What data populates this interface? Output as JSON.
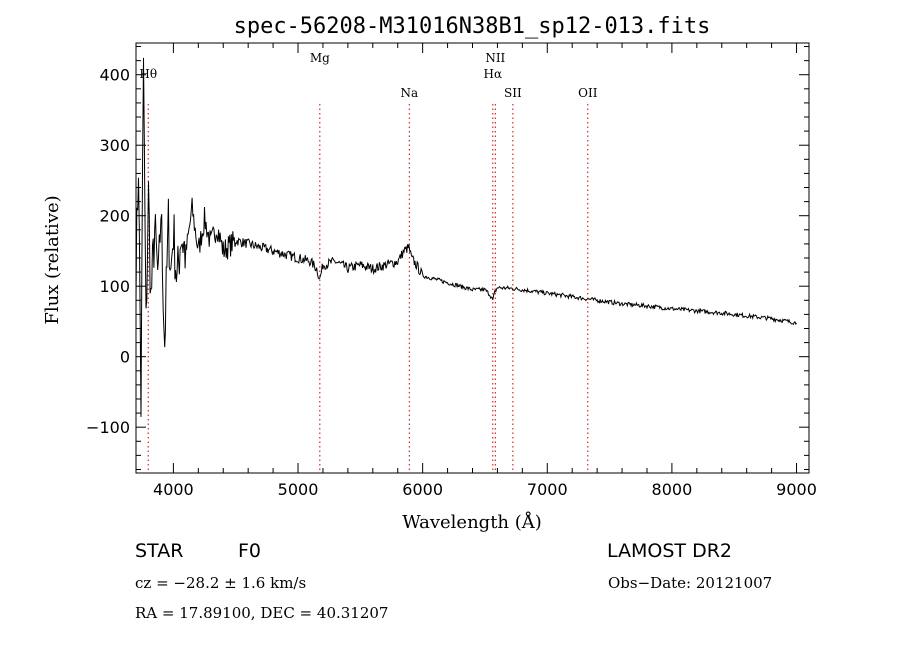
{
  "chart_data": {
    "type": "line",
    "title": "spec-56208-M31016N38B1_sp12-013.fits",
    "xlabel": "Wavelength (Å)",
    "ylabel": "Flux (relative)",
    "xlim": [
      3700,
      9100
    ],
    "ylim": [
      -165,
      445
    ],
    "xticks": [
      4000,
      5000,
      6000,
      7000,
      8000,
      9000
    ],
    "yticks": [
      -100,
      0,
      100,
      200,
      300,
      400
    ],
    "grid": false,
    "series": [
      {
        "color": "#000000",
        "x": [
          3700,
          3720,
          3740,
          3760,
          3780,
          3800,
          3820,
          3850,
          3880,
          3900,
          3930,
          3960,
          3980,
          4000,
          4030,
          4060,
          4100,
          4150,
          4200,
          4250,
          4300,
          4350,
          4400,
          4500,
          4600,
          4700,
          4800,
          4900,
          5000,
          5100,
          5150,
          5175,
          5200,
          5300,
          5400,
          5500,
          5600,
          5700,
          5800,
          5850,
          5890,
          5910,
          5950,
          6000,
          6100,
          6200,
          6300,
          6400,
          6500,
          6540,
          6563,
          6580,
          6600,
          6700,
          6800,
          7000,
          7200,
          7400,
          7600,
          7800,
          8000,
          8200,
          8400,
          8500,
          8600,
          8800,
          9000
        ],
        "y": [
          120,
          280,
          -70,
          420,
          40,
          230,
          80,
          180,
          100,
          210,
          20,
          190,
          120,
          180,
          105,
          175,
          145,
          210,
          150,
          195,
          160,
          185,
          150,
          165,
          160,
          155,
          150,
          145,
          140,
          135,
          125,
          110,
          130,
          135,
          125,
          130,
          125,
          130,
          135,
          150,
          155,
          140,
          130,
          115,
          110,
          105,
          100,
          95,
          95,
          88,
          80,
          92,
          98,
          97,
          95,
          90,
          85,
          80,
          75,
          72,
          68,
          65,
          62,
          60,
          58,
          54,
          48
        ]
      }
    ],
    "spectral_lines": [
      {
        "label": "Hθ",
        "x": 3798,
        "label_row": 1
      },
      {
        "label": "Mg",
        "x": 5175,
        "label_row": 0
      },
      {
        "label": "Na",
        "x": 5893,
        "label_row": 2
      },
      {
        "label": "NII",
        "x": 6583,
        "label_row": 0
      },
      {
        "label": "Hα",
        "x": 6563,
        "label_row": 1
      },
      {
        "label": "SII",
        "x": 6724,
        "label_row": 2
      },
      {
        "label": "OII",
        "x": 7325,
        "label_row": 2
      }
    ],
    "line_color": "#cc0000"
  },
  "info": {
    "object_class": "STAR",
    "subclass": "F0",
    "survey": "LAMOST DR2",
    "cz_text": "cz = −28.2 ± 1.6 km/s",
    "obs_date_text": "Obs−Date: 20121007",
    "coords_text": "RA =  17.89100, DEC =  40.31207"
  }
}
